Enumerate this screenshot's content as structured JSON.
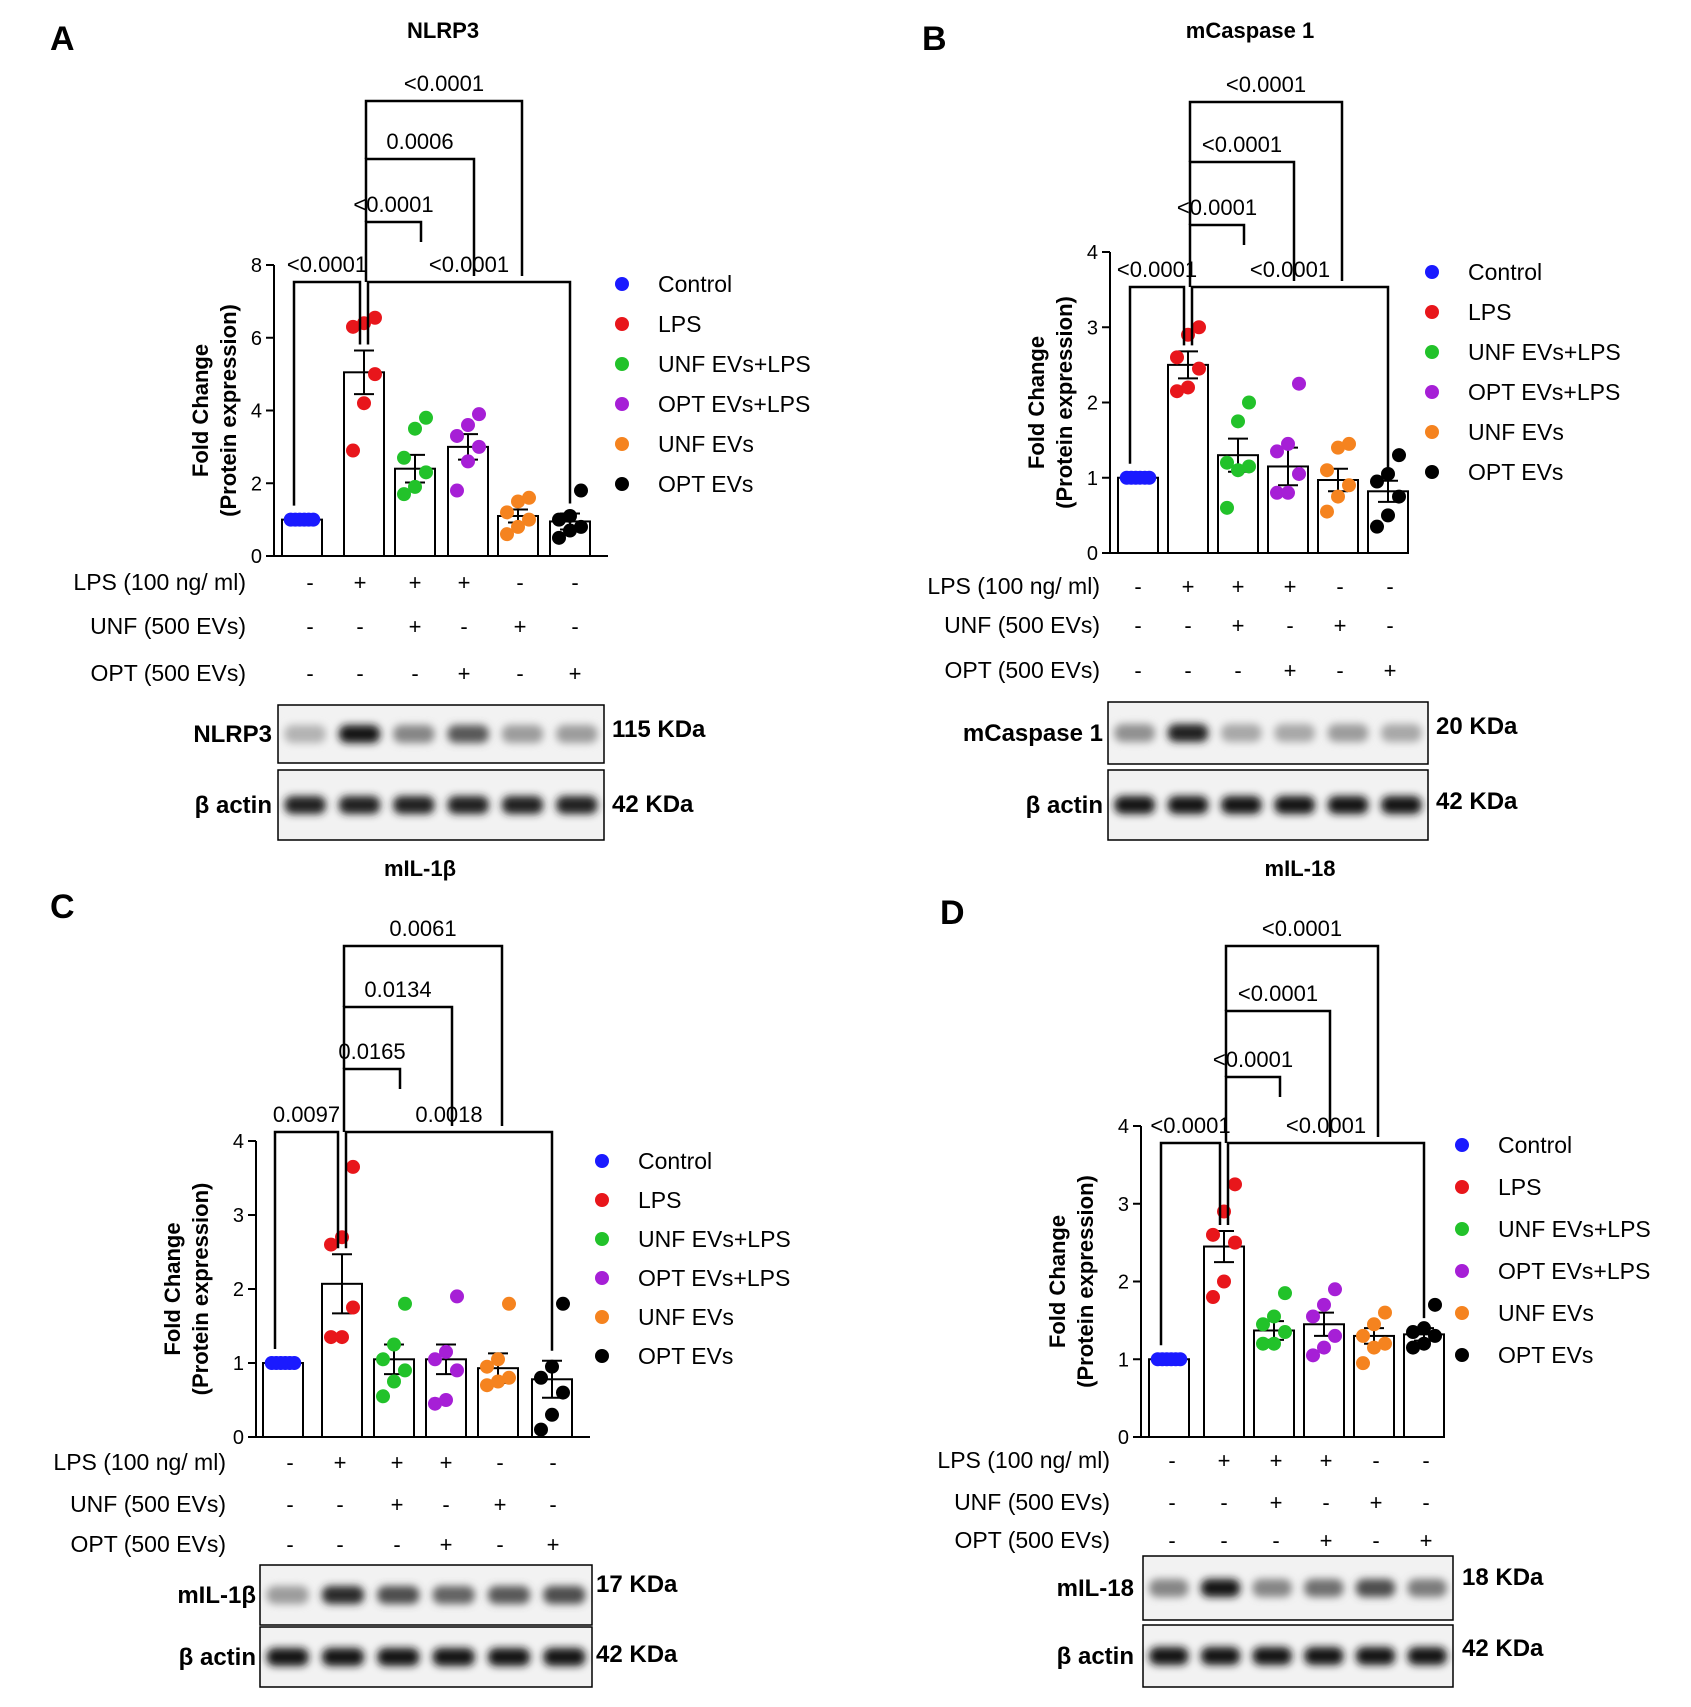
{
  "legend_colors": {
    "Control": "#1a1aff",
    "LPS": "#e8161b",
    "UNF EVs+LPS": "#22c22a",
    "OPT EVs+LPS": "#a61fd6",
    "UNF EVs": "#f5831f",
    "OPT EVs": "#000000"
  },
  "chart_data": [
    {
      "panel": "A",
      "type": "bar",
      "title": "NLRP3",
      "ylabel": [
        "Fold Change",
        "(Protein expression)"
      ],
      "ylim": [
        0,
        8
      ],
      "yticks": [
        "0",
        "2",
        "4",
        "6",
        "8"
      ],
      "categories": [
        "Control",
        "LPS",
        "UNF EVs+LPS",
        "OPT EVs+LPS",
        "UNF EVs",
        "OPT EVs"
      ],
      "values": [
        1.0,
        5.05,
        2.4,
        3.0,
        1.1,
        0.95
      ],
      "errors": [
        0.03,
        0.6,
        0.38,
        0.35,
        0.18,
        0.22
      ],
      "points": [
        [
          1,
          1,
          1,
          1,
          1,
          1
        ],
        [
          2.9,
          4.2,
          5.0,
          6.3,
          6.4,
          6.55
        ],
        [
          1.7,
          1.9,
          2.3,
          2.7,
          3.5,
          3.8
        ],
        [
          1.8,
          2.6,
          3.0,
          3.3,
          3.6,
          3.9
        ],
        [
          0.6,
          0.8,
          1.0,
          1.2,
          1.5,
          1.6
        ],
        [
          0.5,
          0.7,
          0.8,
          1.0,
          1.1,
          1.8
        ]
      ],
      "comparisons": [
        {
          "from": 0,
          "to": 1,
          "label": "<0.0001"
        },
        {
          "from": 1,
          "to": 5,
          "label": "<0.0001"
        },
        {
          "from": 1,
          "to": 2,
          "label": "<0.0001"
        },
        {
          "from": 1,
          "to": 3,
          "label": "0.0006"
        },
        {
          "from": 1,
          "to": 4,
          "label": "<0.0001"
        }
      ],
      "treatment_rows": [
        {
          "label": "LPS (100 ng/ ml)",
          "marks": [
            "-",
            "+",
            "+",
            "+",
            "-",
            "-"
          ]
        },
        {
          "label": "UNF (500 EVs)",
          "marks": [
            "-",
            "-",
            "+",
            "-",
            "+",
            "-"
          ]
        },
        {
          "label": "OPT (500 EVs)",
          "marks": [
            "-",
            "-",
            "-",
            "+",
            "-",
            "+"
          ]
        }
      ],
      "blots": [
        {
          "label": "NLRP3",
          "kda": "115 KDa",
          "intensity": [
            0.25,
            0.95,
            0.45,
            0.65,
            0.35,
            0.35
          ]
        },
        {
          "label": "β actin",
          "kda": "42 KDa",
          "intensity": [
            0.9,
            0.9,
            0.9,
            0.9,
            0.9,
            0.9
          ]
        }
      ],
      "legend_placement": "right"
    },
    {
      "panel": "B",
      "type": "bar",
      "title": "mCaspase 1",
      "ylabel": [
        "Fold Change",
        "(Protein expression)"
      ],
      "ylim": [
        0,
        4
      ],
      "yticks": [
        "0",
        "1",
        "2",
        "3",
        "4"
      ],
      "categories": [
        "Control",
        "LPS",
        "UNF EVs+LPS",
        "OPT EVs+LPS",
        "UNF EVs",
        "OPT EVs"
      ],
      "values": [
        1.0,
        2.5,
        1.3,
        1.15,
        0.97,
        0.82
      ],
      "errors": [
        0.02,
        0.18,
        0.22,
        0.25,
        0.15,
        0.14
      ],
      "points": [
        [
          1,
          1,
          1,
          1,
          1,
          1
        ],
        [
          2.15,
          2.2,
          2.45,
          2.6,
          2.9,
          3.0
        ],
        [
          0.6,
          1.1,
          1.15,
          1.2,
          1.75,
          2.0
        ],
        [
          0.8,
          0.8,
          1.05,
          1.35,
          1.45,
          2.25
        ],
        [
          0.55,
          0.75,
          0.9,
          1.1,
          1.4,
          1.45
        ],
        [
          0.35,
          0.5,
          0.75,
          0.95,
          1.05,
          1.3
        ]
      ],
      "comparisons": [
        {
          "from": 0,
          "to": 1,
          "label": "<0.0001"
        },
        {
          "from": 1,
          "to": 5,
          "label": "<0.0001"
        },
        {
          "from": 1,
          "to": 2,
          "label": "<0.0001"
        },
        {
          "from": 1,
          "to": 3,
          "label": "<0.0001"
        },
        {
          "from": 1,
          "to": 4,
          "label": "<0.0001"
        }
      ],
      "treatment_rows": [
        {
          "label": "LPS (100 ng/ ml)",
          "marks": [
            "-",
            "+",
            "+",
            "+",
            "-",
            "-"
          ]
        },
        {
          "label": "UNF (500 EVs)",
          "marks": [
            "-",
            "-",
            "+",
            "-",
            "+",
            "-"
          ]
        },
        {
          "label": "OPT (500 EVs)",
          "marks": [
            "-",
            "-",
            "-",
            "+",
            "-",
            "+"
          ]
        }
      ],
      "blots": [
        {
          "label": "mCaspase 1",
          "kda": "20 KDa",
          "intensity": [
            0.4,
            0.9,
            0.3,
            0.3,
            0.35,
            0.3
          ]
        },
        {
          "label": "β actin",
          "kda": "42 KDa",
          "intensity": [
            0.95,
            0.95,
            0.95,
            0.95,
            0.95,
            0.95
          ]
        }
      ],
      "legend_placement": "right"
    },
    {
      "panel": "C",
      "type": "bar",
      "title": "mIL-1β",
      "ylabel": [
        "Fold Change",
        "(Protein expression)"
      ],
      "ylim": [
        0,
        4
      ],
      "yticks": [
        "0",
        "1",
        "2",
        "3",
        "4"
      ],
      "categories": [
        "Control",
        "LPS",
        "UNF EVs+LPS",
        "OPT EVs+LPS",
        "UNF EVs",
        "OPT EVs"
      ],
      "values": [
        1.0,
        2.07,
        1.05,
        1.05,
        0.93,
        0.78
      ],
      "errors": [
        0.02,
        0.4,
        0.2,
        0.2,
        0.2,
        0.25
      ],
      "points": [
        [
          1,
          1,
          1,
          1,
          1,
          1
        ],
        [
          1.35,
          1.35,
          1.75,
          2.6,
          2.7,
          3.65
        ],
        [
          0.55,
          0.75,
          0.9,
          1.05,
          1.25,
          1.8
        ],
        [
          0.45,
          0.5,
          0.9,
          1.05,
          1.15,
          1.9
        ],
        [
          0.7,
          0.75,
          0.8,
          0.95,
          1.05,
          1.8
        ],
        [
          0.1,
          0.3,
          0.6,
          0.8,
          0.95,
          1.8
        ]
      ],
      "comparisons": [
        {
          "from": 0,
          "to": 1,
          "label": "0.0097"
        },
        {
          "from": 1,
          "to": 5,
          "label": "0.0018"
        },
        {
          "from": 1,
          "to": 2,
          "label": "0.0165"
        },
        {
          "from": 1,
          "to": 3,
          "label": "0.0134"
        },
        {
          "from": 1,
          "to": 4,
          "label": "0.0061"
        }
      ],
      "treatment_rows": [
        {
          "label": "LPS (100 ng/ ml)",
          "marks": [
            "-",
            "+",
            "+",
            "+",
            "-",
            "-"
          ]
        },
        {
          "label": "UNF (500 EVs)",
          "marks": [
            "-",
            "-",
            "+",
            "-",
            "+",
            "-"
          ]
        },
        {
          "label": "OPT (500 EVs)",
          "marks": [
            "-",
            "-",
            "-",
            "+",
            "-",
            "+"
          ]
        }
      ],
      "blots": [
        {
          "label": "mIL-1β",
          "kda": "17 KDa",
          "intensity": [
            0.35,
            0.85,
            0.7,
            0.6,
            0.65,
            0.7
          ]
        },
        {
          "label": "β actin",
          "kda": "42 KDa",
          "intensity": [
            0.95,
            0.95,
            0.95,
            0.95,
            0.95,
            0.95
          ]
        }
      ],
      "legend_placement": "right"
    },
    {
      "panel": "D",
      "type": "bar",
      "title": "mIL-18",
      "ylabel": [
        "Fold Change",
        "(Protein expression)"
      ],
      "ylim": [
        0,
        4
      ],
      "yticks": [
        "0",
        "1",
        "2",
        "3",
        "4"
      ],
      "categories": [
        "Control",
        "LPS",
        "UNF EVs+LPS",
        "OPT EVs+LPS",
        "UNF EVs",
        "OPT EVs"
      ],
      "values": [
        1.0,
        2.45,
        1.37,
        1.45,
        1.3,
        1.32
      ],
      "errors": [
        0.02,
        0.2,
        0.12,
        0.15,
        0.1,
        0.08
      ],
      "points": [
        [
          1,
          1,
          1,
          1,
          1,
          1
        ],
        [
          1.8,
          2.0,
          2.5,
          2.6,
          2.9,
          3.25
        ],
        [
          1.2,
          1.2,
          1.35,
          1.45,
          1.55,
          1.85
        ],
        [
          1.05,
          1.15,
          1.3,
          1.55,
          1.7,
          1.9
        ],
        [
          0.95,
          1.15,
          1.2,
          1.3,
          1.45,
          1.6
        ],
        [
          1.15,
          1.2,
          1.3,
          1.35,
          1.4,
          1.7
        ]
      ],
      "comparisons": [
        {
          "from": 0,
          "to": 1,
          "label": "<0.0001"
        },
        {
          "from": 1,
          "to": 5,
          "label": "<0.0001"
        },
        {
          "from": 1,
          "to": 2,
          "label": "<0.0001"
        },
        {
          "from": 1,
          "to": 3,
          "label": "<0.0001"
        },
        {
          "from": 1,
          "to": 4,
          "label": "<0.0001"
        }
      ],
      "treatment_rows": [
        {
          "label": "LPS (100 ng/ ml)",
          "marks": [
            "-",
            "+",
            "+",
            "+",
            "-",
            "-"
          ]
        },
        {
          "label": "UNF (500 EVs)",
          "marks": [
            "-",
            "-",
            "+",
            "-",
            "+",
            "-"
          ]
        },
        {
          "label": "OPT (500 EVs)",
          "marks": [
            "-",
            "-",
            "-",
            "+",
            "-",
            "+"
          ]
        }
      ],
      "blots": [
        {
          "label": "mIL-18",
          "kda": "18 KDa",
          "intensity": [
            0.45,
            0.95,
            0.45,
            0.55,
            0.7,
            0.5
          ]
        },
        {
          "label": "β actin",
          "kda": "42 KDa",
          "intensity": [
            0.95,
            0.95,
            0.95,
            0.95,
            0.95,
            0.95
          ]
        }
      ],
      "legend_placement": "right"
    }
  ]
}
